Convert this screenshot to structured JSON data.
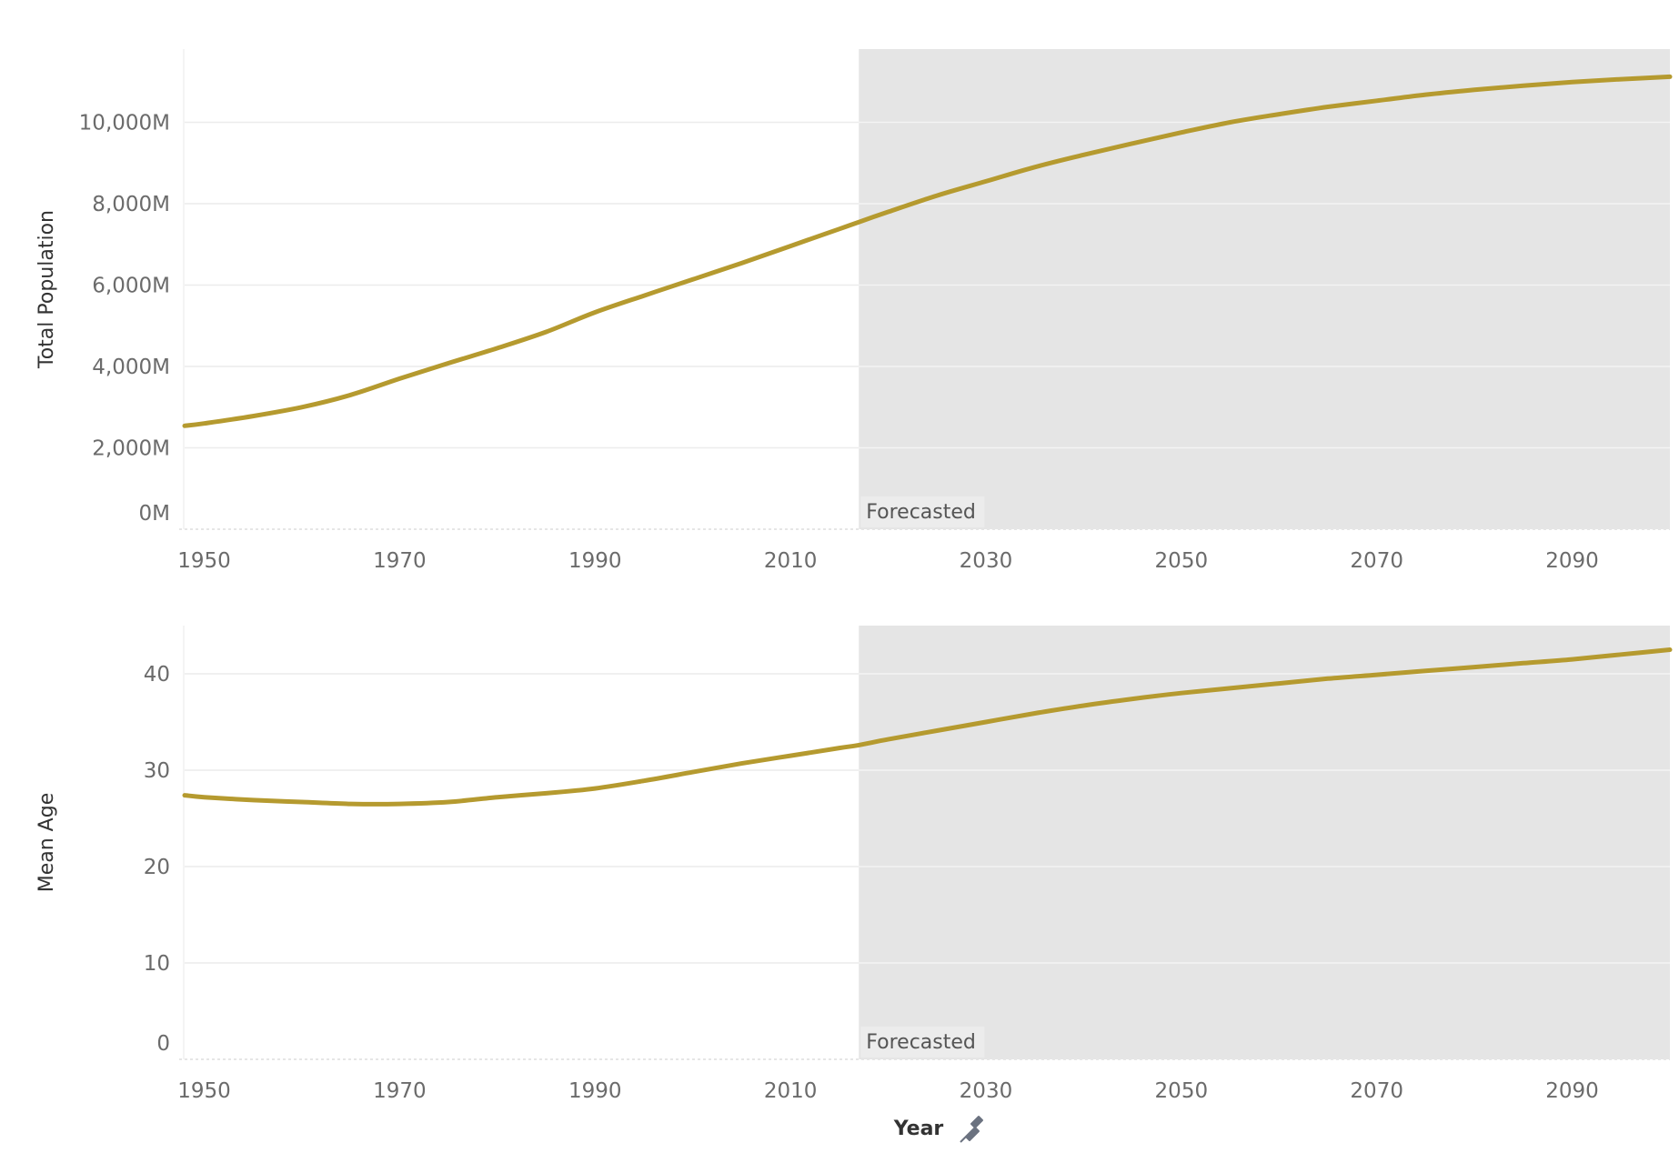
{
  "colors": {
    "series": "#b59a2f",
    "forecast_shade": "#e5e5e5",
    "forecast_label_bg": "#ececec",
    "pin_icon": "#6b7280"
  },
  "x_axis": {
    "title": "Year",
    "icon": "pin-icon"
  },
  "chart_data": [
    {
      "type": "line",
      "title": "",
      "ylabel": "Total Population",
      "xlabel": "Year",
      "xlim": [
        1948,
        2100
      ],
      "ylim": [
        0,
        11800
      ],
      "y_ticks": [
        0,
        2000,
        4000,
        6000,
        8000,
        10000
      ],
      "y_tick_labels": [
        "0M",
        "2,000M",
        "4,000M",
        "6,000M",
        "8,000M",
        "10,000M"
      ],
      "x_ticks": [
        1950,
        1970,
        1990,
        2010,
        2030,
        2050,
        2070,
        2090
      ],
      "x_tick_labels": [
        "1950",
        "1970",
        "1990",
        "2010",
        "2030",
        "2050",
        "2070",
        "2090"
      ],
      "forecast_start": 2017,
      "forecast_label": "Forecasted",
      "series": [
        {
          "name": "Total Population",
          "x": [
            1948,
            1950,
            1955,
            1960,
            1965,
            1970,
            1975,
            1980,
            1985,
            1990,
            1995,
            2000,
            2005,
            2010,
            2015,
            2017,
            2020,
            2025,
            2030,
            2035,
            2040,
            2045,
            2050,
            2055,
            2060,
            2065,
            2070,
            2075,
            2080,
            2085,
            2090,
            2095,
            2100
          ],
          "values": [
            2540,
            2600,
            2780,
            3000,
            3300,
            3700,
            4080,
            4450,
            4850,
            5330,
            5740,
            6140,
            6540,
            6960,
            7380,
            7550,
            7800,
            8200,
            8550,
            8900,
            9200,
            9480,
            9750,
            10000,
            10200,
            10380,
            10530,
            10680,
            10800,
            10900,
            10990,
            11060,
            11120
          ]
        }
      ]
    },
    {
      "type": "line",
      "title": "",
      "ylabel": "Mean Age",
      "xlabel": "Year",
      "xlim": [
        1948,
        2100
      ],
      "ylim": [
        0,
        45
      ],
      "y_ticks": [
        0,
        10,
        20,
        30,
        40
      ],
      "y_tick_labels": [
        "0",
        "10",
        "20",
        "30",
        "40"
      ],
      "x_ticks": [
        1950,
        1970,
        1990,
        2010,
        2030,
        2050,
        2070,
        2090
      ],
      "x_tick_labels": [
        "1950",
        "1970",
        "1990",
        "2010",
        "2030",
        "2050",
        "2070",
        "2090"
      ],
      "forecast_start": 2017,
      "forecast_label": "Forecasted",
      "series": [
        {
          "name": "Mean Age",
          "x": [
            1948,
            1950,
            1955,
            1960,
            1965,
            1970,
            1975,
            1980,
            1985,
            1990,
            1995,
            2000,
            2005,
            2010,
            2015,
            2017,
            2020,
            2025,
            2030,
            2035,
            2040,
            2045,
            2050,
            2055,
            2060,
            2065,
            2070,
            2075,
            2080,
            2085,
            2090,
            2095,
            2100
          ],
          "values": [
            27.4,
            27.2,
            26.9,
            26.7,
            26.5,
            26.5,
            26.7,
            27.2,
            27.6,
            28.1,
            28.9,
            29.8,
            30.7,
            31.5,
            32.3,
            32.6,
            33.2,
            34.1,
            35.0,
            35.9,
            36.7,
            37.4,
            38.0,
            38.5,
            39.0,
            39.5,
            39.9,
            40.3,
            40.7,
            41.1,
            41.5,
            42.0,
            42.5
          ]
        }
      ]
    }
  ]
}
